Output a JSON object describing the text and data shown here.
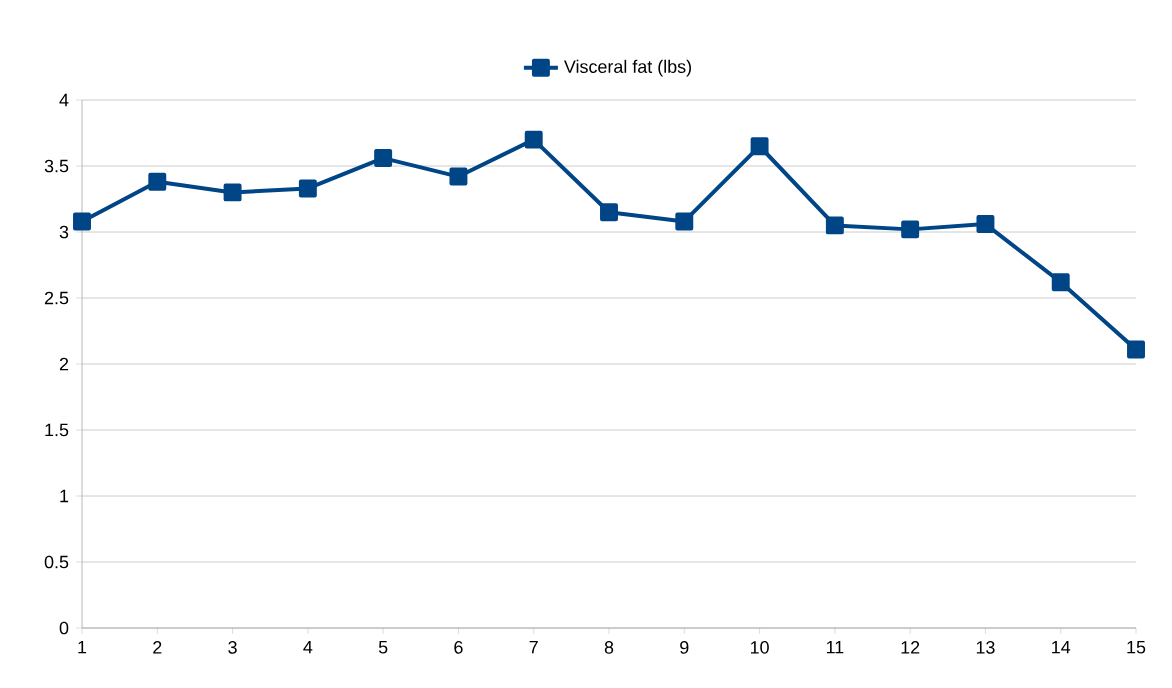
{
  "chart_data": {
    "type": "line",
    "x": [
      1,
      2,
      3,
      4,
      5,
      6,
      7,
      8,
      9,
      10,
      11,
      12,
      13,
      14,
      15
    ],
    "series": [
      {
        "name": "Visceral fat (lbs)",
        "color": "#004586",
        "values": [
          3.08,
          3.38,
          3.3,
          3.33,
          3.56,
          3.42,
          3.7,
          3.15,
          3.08,
          3.65,
          3.05,
          3.02,
          3.06,
          2.62,
          2.11
        ]
      }
    ],
    "xlim": [
      1,
      15
    ],
    "xticks": [
      1,
      2,
      3,
      4,
      5,
      6,
      7,
      8,
      9,
      10,
      11,
      12,
      13,
      14,
      15
    ],
    "ylim": [
      0,
      4
    ],
    "yticks": [
      0,
      0.5,
      1,
      1.5,
      2,
      2.5,
      3,
      3.5,
      4
    ],
    "grid": "y",
    "legend": "top",
    "marker": "square",
    "line_style": "solid"
  }
}
